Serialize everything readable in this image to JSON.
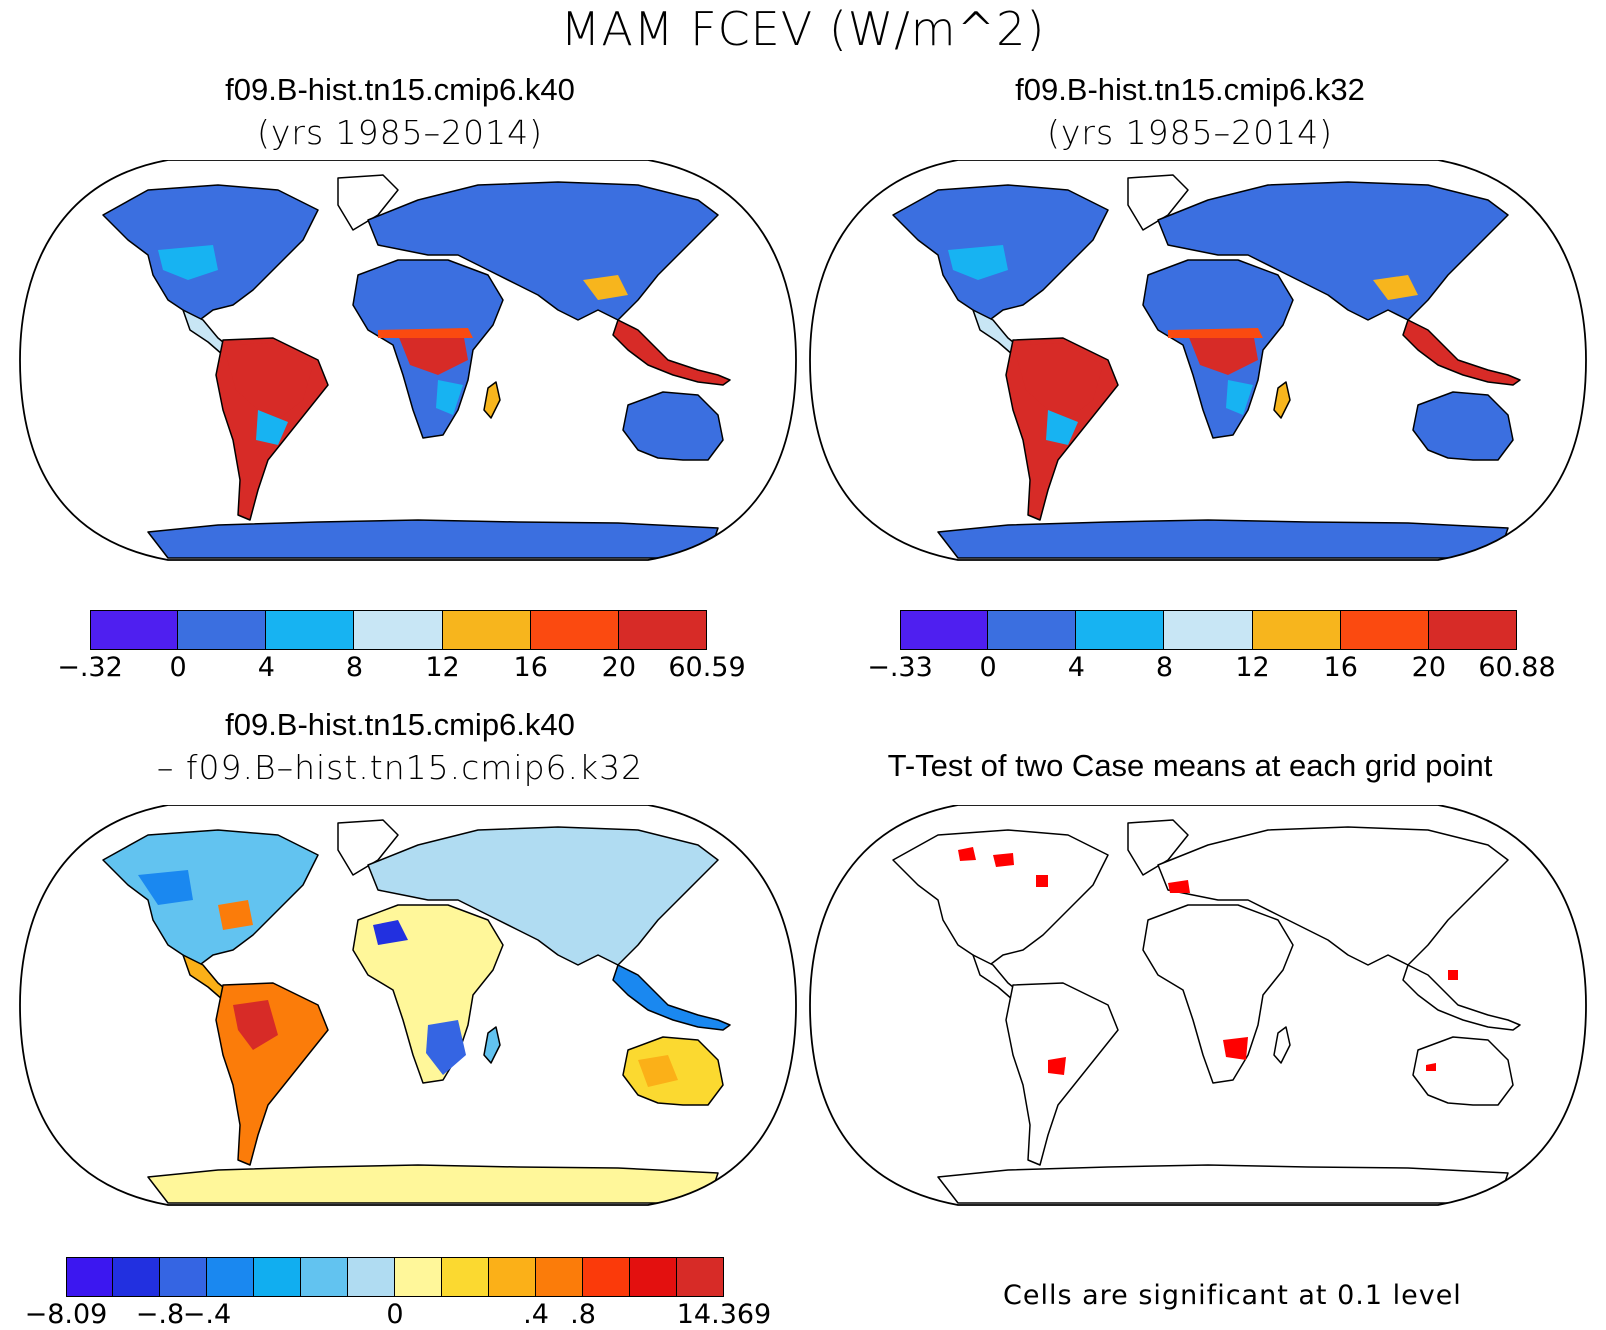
{
  "title": "MAM FCEV (W/m^2)",
  "panels": {
    "top_left": {
      "title_line1": "f09.B-hist.tn15.cmip6.k40",
      "title_line2": "(yrs 1985–2014)",
      "colorbar": {
        "labels": [
          "-.32",
          "0",
          "4",
          "8",
          "12",
          "16",
          "20",
          "60.59"
        ],
        "colors": [
          "#4f1ff0",
          "#3b6fe0",
          "#17b3f2",
          "#c8e6f5",
          "#f7b51d",
          "#fb4a10",
          "#d72b27"
        ]
      }
    },
    "top_right": {
      "title_line1": "f09.B-hist.tn15.cmip6.k32",
      "title_line2": "(yrs 1985–2014)",
      "colorbar": {
        "labels": [
          "-.33",
          "0",
          "4",
          "8",
          "12",
          "16",
          "20",
          "60.88"
        ],
        "colors": [
          "#4f1ff0",
          "#3b6fe0",
          "#17b3f2",
          "#c8e6f5",
          "#f7b51d",
          "#fb4a10",
          "#d72b27"
        ]
      }
    },
    "bottom_left": {
      "title_line1": "f09.B-hist.tn15.cmip6.k40",
      "title_line2": "– f09.B–hist.tn15.cmip6.k32",
      "colorbar": {
        "labels": [
          "-8.09",
          "-.8",
          "-.4",
          "0",
          ".4",
          ".8",
          "14.369"
        ],
        "colors": [
          "#3c17f0",
          "#2230e0",
          "#3565e3",
          "#1a88f0",
          "#11aef0",
          "#62c3f0",
          "#b0dcf2",
          "#fff79a",
          "#fbd930",
          "#fbb018",
          "#fb7c0a",
          "#fb3a0a",
          "#e3100f",
          "#d72b27"
        ]
      }
    },
    "bottom_right": {
      "title": "T-Test of two Case means at each grid point",
      "footer": "Cells are significant at 0.1 level"
    }
  }
}
